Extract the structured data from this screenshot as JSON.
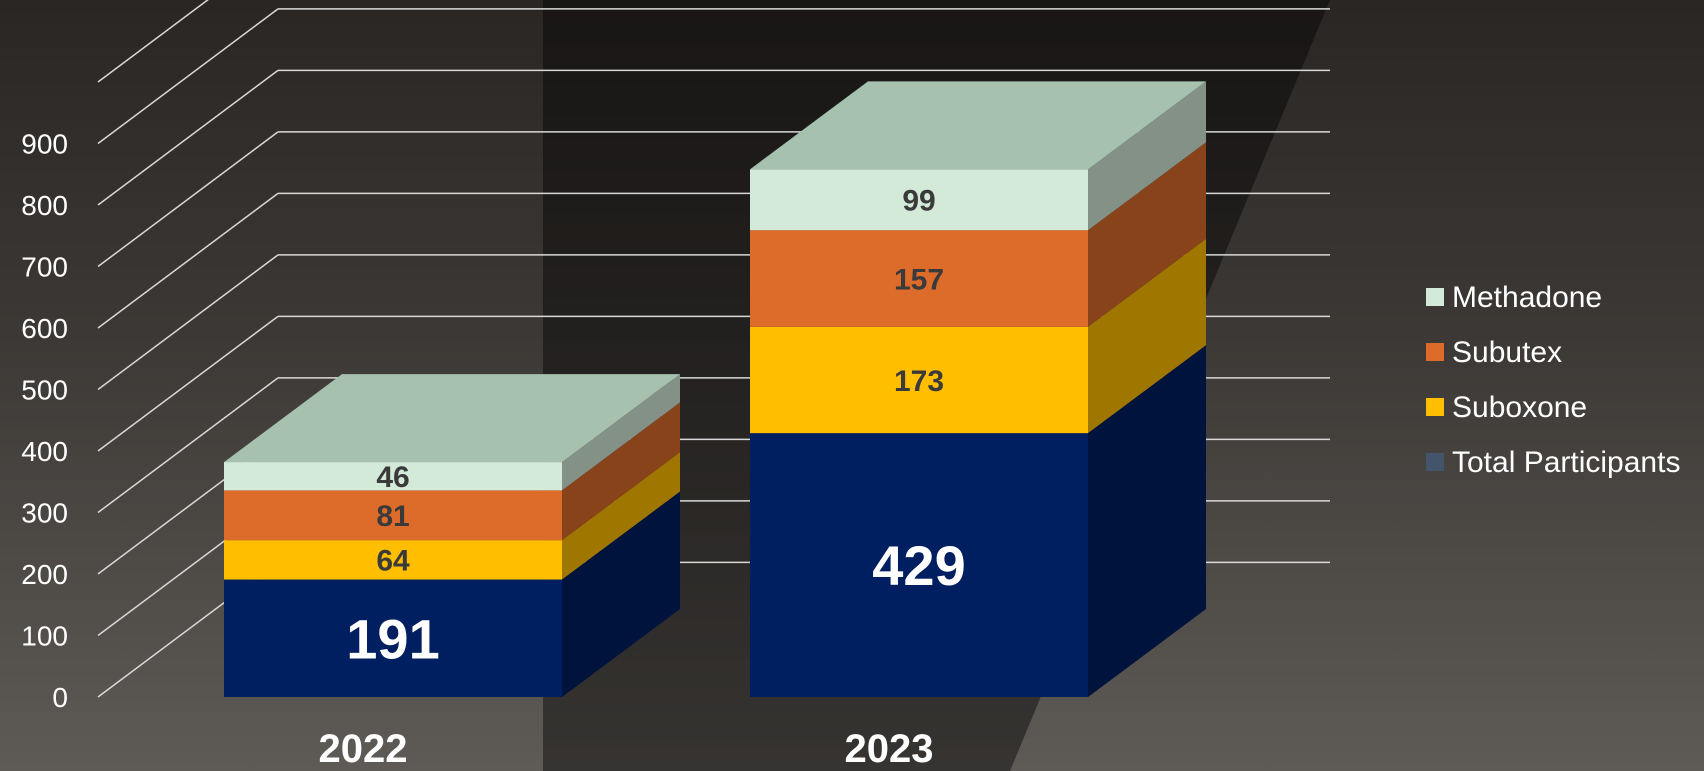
{
  "chart_data": {
    "type": "bar",
    "stacked": true,
    "three_d": true,
    "categories": [
      "2022",
      "2023"
    ],
    "series": [
      {
        "name": "Total Participants",
        "values": [
          191,
          429
        ],
        "color": "#001f60"
      },
      {
        "name": "Suboxone",
        "values": [
          64,
          173
        ],
        "color": "#ffbf00"
      },
      {
        "name": "Subutex",
        "values": [
          81,
          157
        ],
        "color": "#dd6c2b"
      },
      {
        "name": "Methadone",
        "values": [
          46,
          99
        ],
        "color": "#d3ead9"
      }
    ],
    "y_ticks": [
      "0",
      "100",
      "200",
      "300",
      "400",
      "500",
      "600",
      "700",
      "800",
      "900"
    ],
    "ylim": [
      0,
      1000
    ],
    "grid": true,
    "legend_position": "right",
    "legend_order": [
      "Methadone",
      "Subutex",
      "Suboxone",
      "Total Participants"
    ],
    "legend_swatch_colors": {
      "Methadone": "#d3ead9",
      "Subutex": "#dd6c2b",
      "Suboxone": "#ffbf00",
      "Total Participants": "#44546a"
    },
    "data_labels": [
      [
        "191",
        "64",
        "81",
        "46"
      ],
      [
        "429",
        "173",
        "157",
        "99"
      ]
    ],
    "label_colors": {
      "light_on_dark": "#ffffff",
      "dark_on_light": "#3a3a3a"
    }
  }
}
